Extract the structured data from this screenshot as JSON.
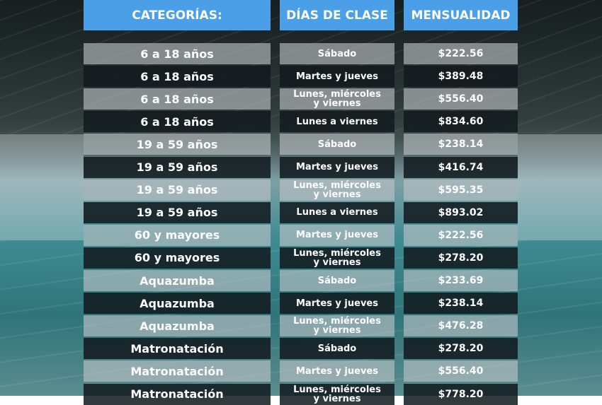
{
  "table": {
    "columns": [
      "CATEGORÍAS:",
      "DÍAS DE CLASE",
      "MENSUALIDAD"
    ],
    "rows": [
      [
        "6 a 18 años",
        "Sábado",
        "$222.56"
      ],
      [
        "6 a 18 años",
        "Martes y jueves",
        "$389.48"
      ],
      [
        "6 a 18 años",
        "Lunes, miércoles y viernes",
        "$556.40"
      ],
      [
        "6 a 18 años",
        "Lunes a viernes",
        "$834.60"
      ],
      [
        "19 a 59 años",
        "Sábado",
        "$238.14"
      ],
      [
        "19 a 59 años",
        "Martes y jueves",
        "$416.74"
      ],
      [
        "19 a 59 años",
        "Lunes, miércoles y viernes",
        "$595.35"
      ],
      [
        "19 a 59 años",
        "Lunes a viernes",
        "$893.02"
      ],
      [
        "60 y  mayores",
        "Martes y jueves",
        "$222.56"
      ],
      [
        "60 y  mayores",
        "Lunes, miércoles y viernes",
        "$278.20"
      ],
      [
        "Aquazumba",
        "Sábado",
        "$233.69"
      ],
      [
        "Aquazumba",
        "Martes y jueves",
        "$238.14"
      ],
      [
        "Aquazumba",
        "Lunes, miércoles y viernes",
        "$476.28"
      ],
      [
        "Matronatación",
        "Sábado",
        "$278.20"
      ],
      [
        "Matronatación",
        "Martes y jueves",
        "$556.40"
      ],
      [
        "Matronatación",
        "Lunes, miércoles y viernes",
        "$778.20"
      ]
    ]
  }
}
